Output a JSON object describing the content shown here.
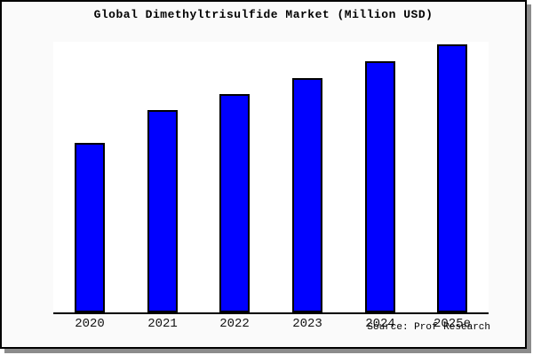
{
  "chart_data": {
    "type": "bar",
    "title": "Global Dimethyltrisulfide Market (Million USD)",
    "categories": [
      "2020",
      "2021",
      "2022",
      "2023",
      "2024",
      "2025e"
    ],
    "values": [
      63.2,
      75.5,
      81.5,
      87.4,
      93.7,
      100
    ],
    "value_scale": "relative, tallest bar = 100 (no y-axis tick labels shown)",
    "xlabel": "",
    "ylabel": "",
    "ylim": [
      0,
      101
    ],
    "grid": false,
    "legend": false,
    "bar_color": "#0000ff",
    "bar_edge_color": "#000000",
    "plot_bg": "#ffffff",
    "figure_bg": "#fafafa"
  },
  "footer": {
    "source_label": "Source: Prof Research"
  }
}
